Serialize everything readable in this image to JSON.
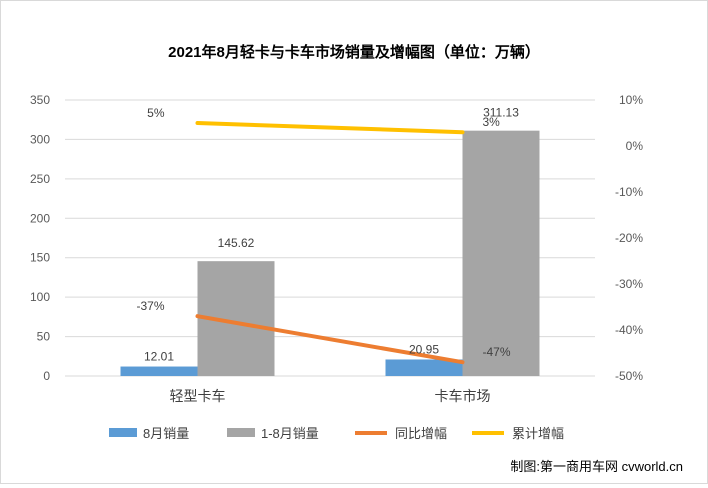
{
  "chart_data": {
    "type": "bar",
    "title": "2021年8月轻卡与卡车市场销量及增幅图（单位：万辆）",
    "categories": [
      "轻型卡车",
      "卡车市场"
    ],
    "series": [
      {
        "name": "8月销量",
        "kind": "bar",
        "axis": "left",
        "color": "#5b9bd5",
        "values": [
          12.01,
          20.95
        ],
        "labels": [
          "12.01",
          "20.95"
        ]
      },
      {
        "name": "1-8月销量",
        "kind": "bar",
        "axis": "left",
        "color": "#a5a5a5",
        "values": [
          145.62,
          311.13
        ],
        "labels": [
          "145.62",
          "311.13"
        ]
      },
      {
        "name": "同比增幅",
        "kind": "line",
        "axis": "right",
        "color": "#ed7d31",
        "values": [
          -37,
          -47
        ],
        "labels": [
          "-37%",
          "-47%"
        ]
      },
      {
        "name": "累计增幅",
        "kind": "line",
        "axis": "right",
        "color": "#ffc000",
        "values": [
          5,
          3
        ],
        "labels": [
          "5%",
          "3%"
        ]
      }
    ],
    "y_left": {
      "min": 0,
      "max": 350,
      "ticks": [
        "0",
        "50",
        "100",
        "150",
        "200",
        "250",
        "300",
        "350"
      ]
    },
    "y_right": {
      "min": -50,
      "max": 10,
      "ticks": [
        "-50%",
        "-40%",
        "-30%",
        "-20%",
        "-10%",
        "0%",
        "10%"
      ]
    },
    "grid": true,
    "legend_position": "bottom"
  },
  "credit": "制图:第一商用车网 cvworld.cn"
}
